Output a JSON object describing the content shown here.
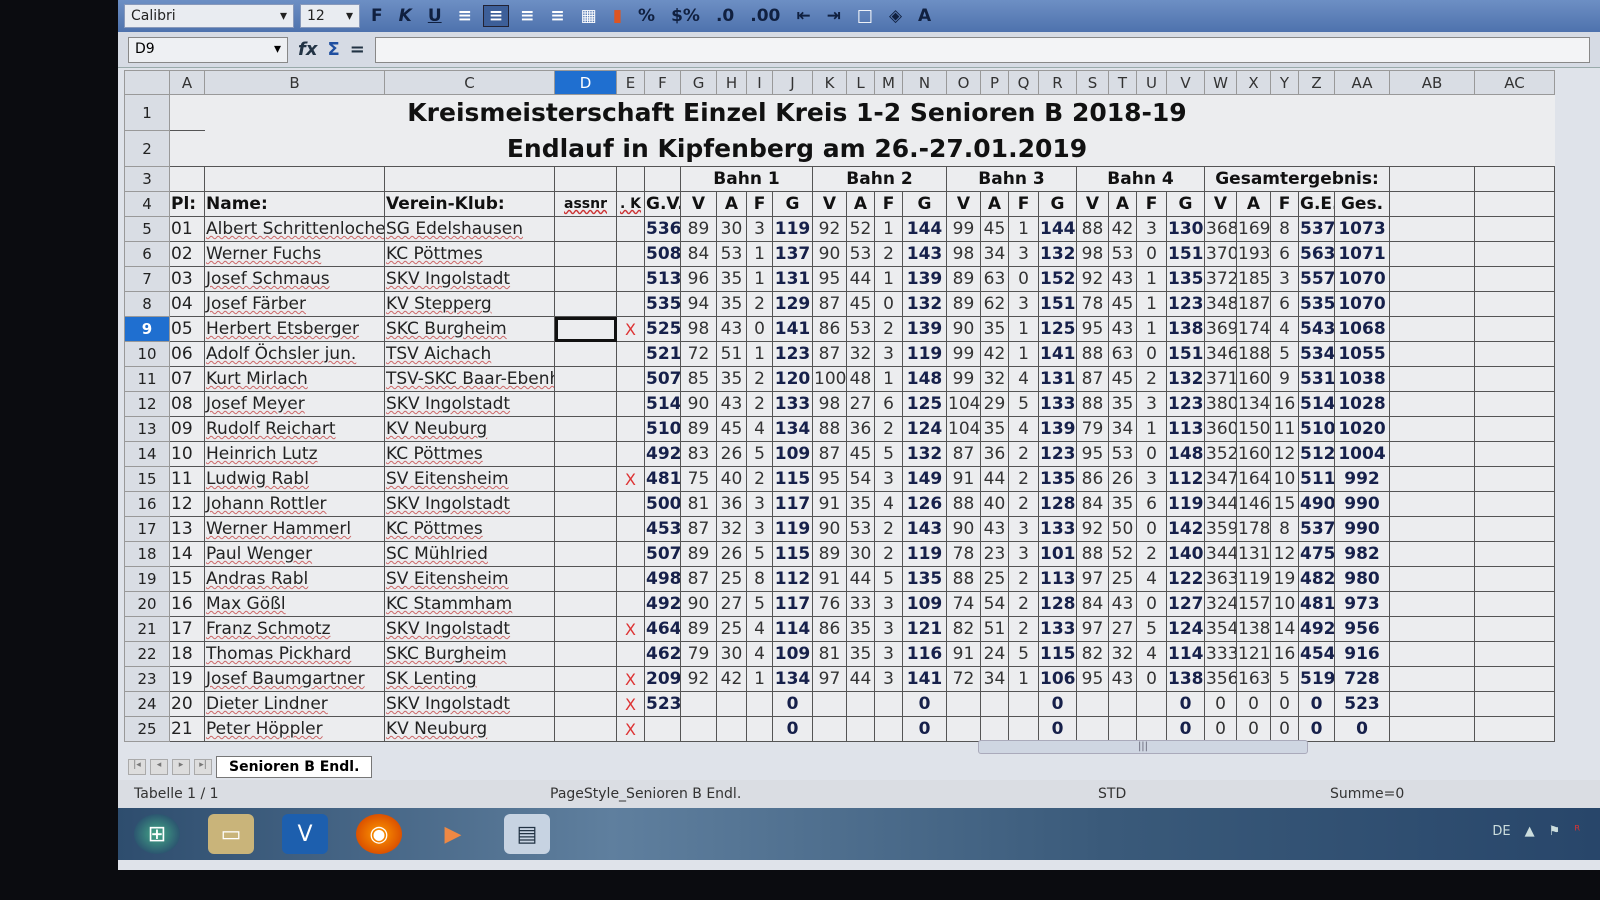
{
  "toolbar": {
    "font": "Calibri",
    "size": "12",
    "bold": "F",
    "italic": "K",
    "underline": "U"
  },
  "formula": {
    "namebox": "D9",
    "fx": "fx",
    "sum": "Σ",
    "eq": "="
  },
  "columns": [
    "A",
    "B",
    "C",
    "D",
    "E",
    "F",
    "G",
    "H",
    "I",
    "J",
    "K",
    "L",
    "M",
    "N",
    "O",
    "P",
    "Q",
    "R",
    "S",
    "T",
    "U",
    "V",
    "W",
    "X",
    "Y",
    "Z",
    "AA",
    "AB",
    "AC"
  ],
  "selected_column": "D",
  "selected_row": 9,
  "title1": "Kreismeisterschaft  Einzel  Kreis 1-2  Senioren B  2018-19",
  "title2": "Endlauf  in  Kipfenberg  am  26.-27.01.2019",
  "groups": [
    "Bahn 1",
    "Bahn 2",
    "Bahn 3",
    "Bahn 4",
    "Gesamtergebnis:"
  ],
  "headers": [
    "Pl:",
    "Name:",
    "Verein-Klub:",
    "assnr",
    ". K",
    "G.V.",
    "V",
    "A",
    "F",
    "G",
    "V",
    "A",
    "F",
    "G",
    "V",
    "A",
    "F",
    "G",
    "V",
    "A",
    "F",
    "G",
    "V",
    "A",
    "F",
    "G.E.",
    "Ges."
  ],
  "rows": [
    [
      "01",
      "Albert Schrittenloche",
      "SG Edelshausen",
      "",
      "",
      "536",
      "89",
      "30",
      "3",
      "119",
      "92",
      "52",
      "1",
      "144",
      "99",
      "45",
      "1",
      "144",
      "88",
      "42",
      "3",
      "130",
      "368",
      "169",
      "8",
      "537",
      "1073"
    ],
    [
      "02",
      "Werner Fuchs",
      "KC Pöttmes",
      "",
      "",
      "508",
      "84",
      "53",
      "1",
      "137",
      "90",
      "53",
      "2",
      "143",
      "98",
      "34",
      "3",
      "132",
      "98",
      "53",
      "0",
      "151",
      "370",
      "193",
      "6",
      "563",
      "1071"
    ],
    [
      "03",
      "Josef Schmaus",
      "SKV Ingolstadt",
      "",
      "",
      "513",
      "96",
      "35",
      "1",
      "131",
      "95",
      "44",
      "1",
      "139",
      "89",
      "63",
      "0",
      "152",
      "92",
      "43",
      "1",
      "135",
      "372",
      "185",
      "3",
      "557",
      "1070"
    ],
    [
      "04",
      "Josef Färber",
      "KV Stepperg",
      "",
      "",
      "535",
      "94",
      "35",
      "2",
      "129",
      "87",
      "45",
      "0",
      "132",
      "89",
      "62",
      "3",
      "151",
      "78",
      "45",
      "1",
      "123",
      "348",
      "187",
      "6",
      "535",
      "1070"
    ],
    [
      "05",
      "Herbert Etsberger",
      "SKC Burgheim",
      "",
      "X",
      "525",
      "98",
      "43",
      "0",
      "141",
      "86",
      "53",
      "2",
      "139",
      "90",
      "35",
      "1",
      "125",
      "95",
      "43",
      "1",
      "138",
      "369",
      "174",
      "4",
      "543",
      "1068"
    ],
    [
      "06",
      "Adolf Öchsler jun.",
      "TSV Aichach",
      "",
      "",
      "521",
      "72",
      "51",
      "1",
      "123",
      "87",
      "32",
      "3",
      "119",
      "99",
      "42",
      "1",
      "141",
      "88",
      "63",
      "0",
      "151",
      "346",
      "188",
      "5",
      "534",
      "1055"
    ],
    [
      "07",
      "Kurt Mirlach",
      "TSV-SKC Baar-Ebenh.",
      "",
      "",
      "507",
      "85",
      "35",
      "2",
      "120",
      "100",
      "48",
      "1",
      "148",
      "99",
      "32",
      "4",
      "131",
      "87",
      "45",
      "2",
      "132",
      "371",
      "160",
      "9",
      "531",
      "1038"
    ],
    [
      "08",
      "Josef Meyer",
      "SKV Ingolstadt",
      "",
      "",
      "514",
      "90",
      "43",
      "2",
      "133",
      "98",
      "27",
      "6",
      "125",
      "104",
      "29",
      "5",
      "133",
      "88",
      "35",
      "3",
      "123",
      "380",
      "134",
      "16",
      "514",
      "1028"
    ],
    [
      "09",
      "Rudolf Reichart",
      "KV Neuburg",
      "",
      "",
      "510",
      "89",
      "45",
      "4",
      "134",
      "88",
      "36",
      "2",
      "124",
      "104",
      "35",
      "4",
      "139",
      "79",
      "34",
      "1",
      "113",
      "360",
      "150",
      "11",
      "510",
      "1020"
    ],
    [
      "10",
      "Heinrich Lutz",
      "KC Pöttmes",
      "",
      "",
      "492",
      "83",
      "26",
      "5",
      "109",
      "87",
      "45",
      "5",
      "132",
      "87",
      "36",
      "2",
      "123",
      "95",
      "53",
      "0",
      "148",
      "352",
      "160",
      "12",
      "512",
      "1004"
    ],
    [
      "11",
      "Ludwig Rabl",
      "SV Eitensheim",
      "",
      "X",
      "481",
      "75",
      "40",
      "2",
      "115",
      "95",
      "54",
      "3",
      "149",
      "91",
      "44",
      "2",
      "135",
      "86",
      "26",
      "3",
      "112",
      "347",
      "164",
      "10",
      "511",
      "992"
    ],
    [
      "12",
      "Johann Rottler",
      "SKV Ingolstadt",
      "",
      "",
      "500",
      "81",
      "36",
      "3",
      "117",
      "91",
      "35",
      "4",
      "126",
      "88",
      "40",
      "2",
      "128",
      "84",
      "35",
      "6",
      "119",
      "344",
      "146",
      "15",
      "490",
      "990"
    ],
    [
      "13",
      "Werner Hammerl",
      "KC Pöttmes",
      "",
      "",
      "453",
      "87",
      "32",
      "3",
      "119",
      "90",
      "53",
      "2",
      "143",
      "90",
      "43",
      "3",
      "133",
      "92",
      "50",
      "0",
      "142",
      "359",
      "178",
      "8",
      "537",
      "990"
    ],
    [
      "14",
      "Paul Wenger",
      "SC Mühlried",
      "",
      "",
      "507",
      "89",
      "26",
      "5",
      "115",
      "89",
      "30",
      "2",
      "119",
      "78",
      "23",
      "3",
      "101",
      "88",
      "52",
      "2",
      "140",
      "344",
      "131",
      "12",
      "475",
      "982"
    ],
    [
      "15",
      "Andras Rabl",
      "SV Eitensheim",
      "",
      "",
      "498",
      "87",
      "25",
      "8",
      "112",
      "91",
      "44",
      "5",
      "135",
      "88",
      "25",
      "2",
      "113",
      "97",
      "25",
      "4",
      "122",
      "363",
      "119",
      "19",
      "482",
      "980"
    ],
    [
      "16",
      "Max Gößl",
      "KC Stammham",
      "",
      "",
      "492",
      "90",
      "27",
      "5",
      "117",
      "76",
      "33",
      "3",
      "109",
      "74",
      "54",
      "2",
      "128",
      "84",
      "43",
      "0",
      "127",
      "324",
      "157",
      "10",
      "481",
      "973"
    ],
    [
      "17",
      "Franz Schmotz",
      "SKV Ingolstadt",
      "",
      "X",
      "464",
      "89",
      "25",
      "4",
      "114",
      "86",
      "35",
      "3",
      "121",
      "82",
      "51",
      "2",
      "133",
      "97",
      "27",
      "5",
      "124",
      "354",
      "138",
      "14",
      "492",
      "956"
    ],
    [
      "18",
      "Thomas Pickhard",
      "SKC Burgheim",
      "",
      "",
      "462",
      "79",
      "30",
      "4",
      "109",
      "81",
      "35",
      "3",
      "116",
      "91",
      "24",
      "5",
      "115",
      "82",
      "32",
      "4",
      "114",
      "333",
      "121",
      "16",
      "454",
      "916"
    ],
    [
      "19",
      "Josef Baumgartner",
      "SK Lenting",
      "",
      "X",
      "209",
      "92",
      "42",
      "1",
      "134",
      "97",
      "44",
      "3",
      "141",
      "72",
      "34",
      "1",
      "106",
      "95",
      "43",
      "0",
      "138",
      "356",
      "163",
      "5",
      "519",
      "728"
    ],
    [
      "20",
      "Dieter Lindner",
      "SKV Ingolstadt",
      "",
      "X",
      "523",
      "",
      "",
      "",
      "0",
      "",
      "",
      "",
      "0",
      "",
      "",
      "",
      "0",
      "",
      "",
      "",
      "0",
      "0",
      "0",
      "0",
      "0",
      "523"
    ],
    [
      "21",
      "Peter Höppler",
      "KV Neuburg",
      "",
      "X",
      "",
      "",
      "",
      "",
      "0",
      "",
      "",
      "",
      "0",
      "",
      "",
      "",
      "0",
      "",
      "",
      "",
      "0",
      "0",
      "0",
      "0",
      "0",
      "0"
    ]
  ],
  "sheet_tab": "Senioren B Endl.",
  "status": {
    "sheet": "Tabelle 1 / 1",
    "pagestyle": "PageStyle_Senioren B Endl.",
    "mode": "STD",
    "sum": "Summe=0"
  },
  "tray": {
    "lang": "DE"
  },
  "colors": {
    "selection": "#1f6fd0",
    "bold_values": "#16204a",
    "mark": "#dd3333"
  }
}
